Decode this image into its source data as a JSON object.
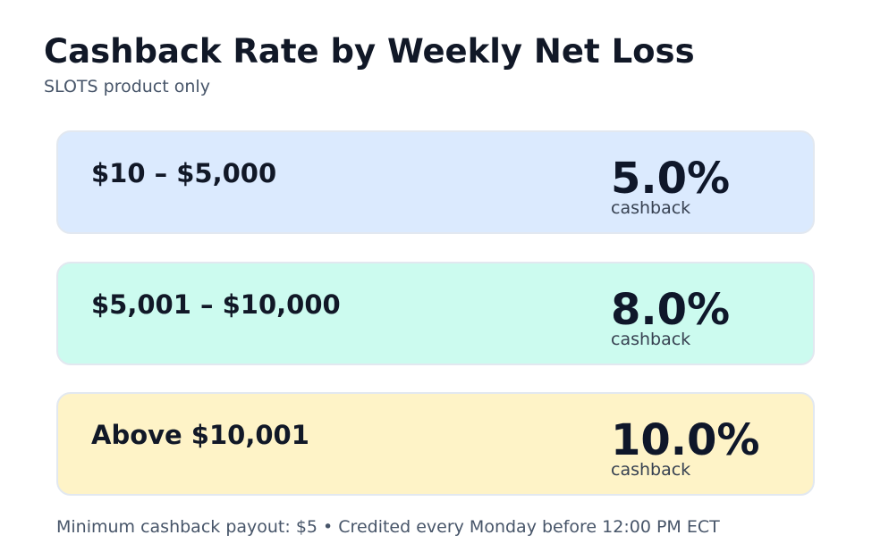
{
  "header": {
    "title": "Cashback Rate by Weekly Net Loss",
    "subtitle": "SLOTS product only"
  },
  "tiers": [
    {
      "range": "$10 – $5,000",
      "rate": "5.0%",
      "caption": "cashback",
      "color": "#dbeafe"
    },
    {
      "range": "$5,001 – $10,000",
      "rate": "8.0%",
      "caption": "cashback",
      "color": "#ccfbef"
    },
    {
      "range": "Above $10,001",
      "rate": "10.0%",
      "caption": "cashback",
      "color": "#fef3c7"
    }
  ],
  "footer": {
    "note": "Minimum cashback payout: $5 • Credited every Monday before 12:00 PM ECT"
  }
}
